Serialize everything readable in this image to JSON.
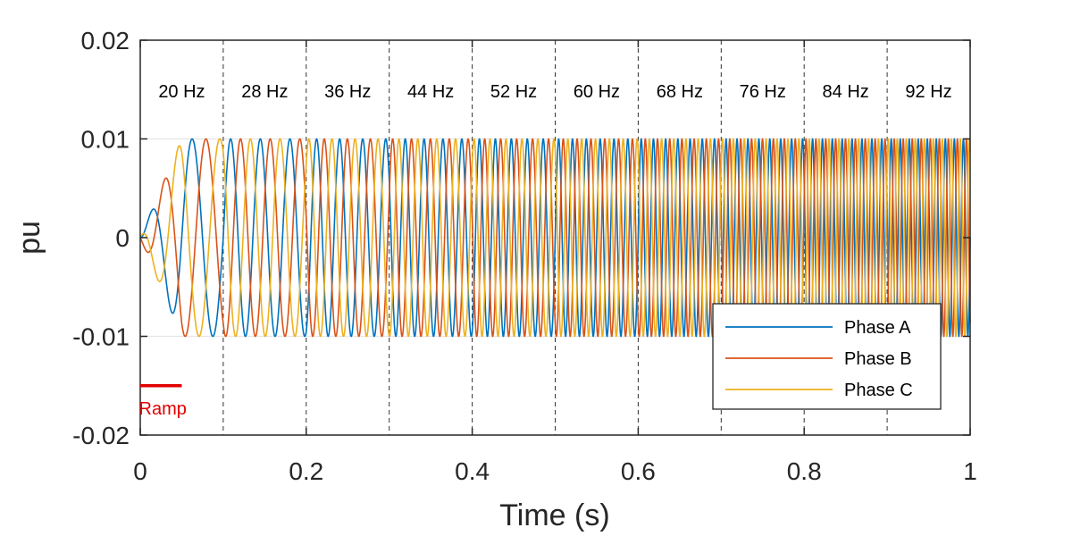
{
  "chart_data": {
    "type": "line",
    "title": "",
    "xlabel": "Time (s)",
    "ylabel": "pu",
    "xlim": [
      0,
      1
    ],
    "ylim": [
      -0.02,
      0.02
    ],
    "xticks": [
      0,
      0.2,
      0.4,
      0.6,
      0.8,
      1
    ],
    "xtick_labels": [
      "0",
      "0.2",
      "0.4",
      "0.6",
      "0.8",
      "1"
    ],
    "yticks": [
      0.02,
      0.01,
      0,
      -0.01,
      -0.02
    ],
    "ytick_labels": [
      "0.02",
      "0.01",
      "0",
      "-0.01",
      "-0.02"
    ],
    "grid": "horizontal major lines",
    "amplitude": 0.01,
    "ramp_end_time": 0.05,
    "series": [
      {
        "name": "Phase A",
        "color": "#0072BD",
        "phase_deg": 0
      },
      {
        "name": "Phase B",
        "color": "#D95319",
        "phase_deg": -120
      },
      {
        "name": "Phase C",
        "color": "#EDB120",
        "phase_deg": 120
      }
    ],
    "frequency_bands": [
      {
        "label": "20 Hz",
        "freq": 20,
        "start": 0.0,
        "end": 0.1
      },
      {
        "label": "28 Hz",
        "freq": 28,
        "start": 0.1,
        "end": 0.2
      },
      {
        "label": "36 Hz",
        "freq": 36,
        "start": 0.2,
        "end": 0.3
      },
      {
        "label": "44 Hz",
        "freq": 44,
        "start": 0.3,
        "end": 0.4
      },
      {
        "label": "52 Hz",
        "freq": 52,
        "start": 0.4,
        "end": 0.5
      },
      {
        "label": "60 Hz",
        "freq": 60,
        "start": 0.5,
        "end": 0.6
      },
      {
        "label": "68 Hz",
        "freq": 68,
        "start": 0.6,
        "end": 0.7
      },
      {
        "label": "76 Hz",
        "freq": 76,
        "start": 0.7,
        "end": 0.8
      },
      {
        "label": "84 Hz",
        "freq": 84,
        "start": 0.8,
        "end": 0.9
      },
      {
        "label": "92 Hz",
        "freq": 92,
        "start": 0.9,
        "end": 1.0
      }
    ],
    "dashed_boundaries": [
      0.1,
      0.2,
      0.3,
      0.4,
      0.5,
      0.6,
      0.7,
      0.8,
      0.9
    ],
    "annotations": [
      {
        "text": "Ramp",
        "color": "#e00000",
        "x_start": 0.0,
        "x_end": 0.05,
        "y": -0.015
      }
    ],
    "legend": {
      "position": "bottom-right",
      "entries": [
        "Phase A",
        "Phase B",
        "Phase C"
      ]
    }
  }
}
